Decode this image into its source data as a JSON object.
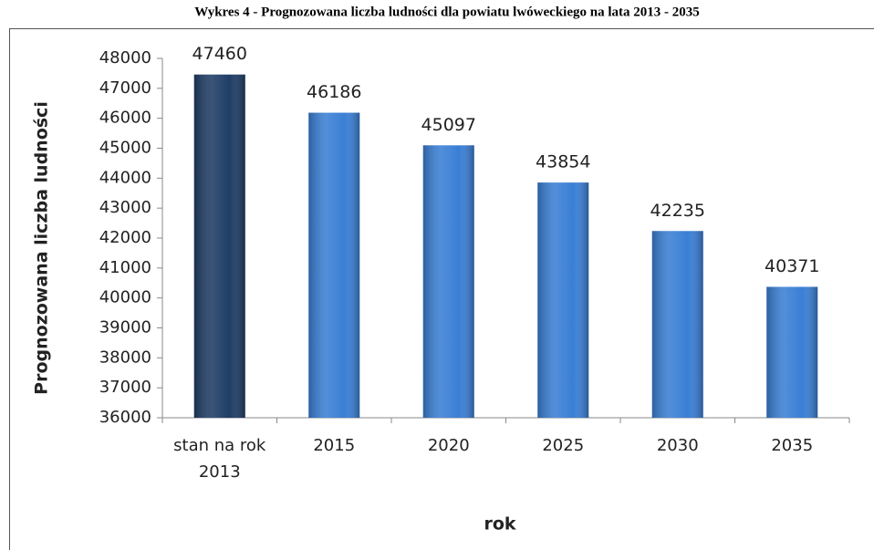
{
  "chart_data": {
    "type": "bar",
    "title": "Wykres 4 - Prognozowana liczba ludności dla powiatu lwóweckiego na lata 2013 - 2035",
    "x_label": "rok",
    "y_label": "Prognozowana liczba ludności",
    "categories": [
      "stan na rok 2013",
      "2015",
      "2020",
      "2025",
      "2030",
      "2035"
    ],
    "values": [
      47460,
      46186,
      45097,
      43854,
      42235,
      40371
    ],
    "colors": [
      "#1f3d66",
      "#3a7fd5",
      "#3a7fd5",
      "#3a7fd5",
      "#3a7fd5",
      "#3a7fd5"
    ],
    "ylim": [
      36000,
      48000
    ],
    "yticks": [
      36000,
      37000,
      38000,
      39000,
      40000,
      41000,
      42000,
      43000,
      44000,
      45000,
      46000,
      47000,
      48000
    ],
    "grid": false
  }
}
